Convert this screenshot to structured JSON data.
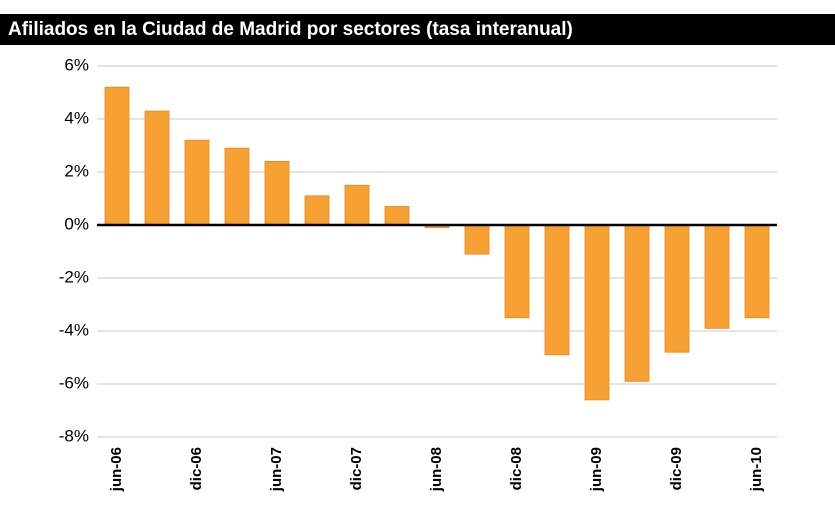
{
  "chart_data": {
    "type": "bar",
    "title": "Afiliados en la Ciudad de Madrid por sectores (tasa interanual)",
    "categories": [
      "jun-06",
      null,
      "dic-06",
      null,
      "jun-07",
      null,
      "dic-07",
      null,
      "jun-08",
      null,
      "dic-08",
      null,
      "jun-09",
      null,
      "dic-09",
      null,
      "jun-10"
    ],
    "values": [
      5.2,
      4.3,
      3.2,
      2.9,
      2.4,
      1.1,
      1.5,
      0.7,
      -0.1,
      -1.1,
      -3.5,
      -4.9,
      -6.6,
      -5.9,
      -4.8,
      -3.9,
      -3.5
    ],
    "color": "#f7a033",
    "ylim": [
      -8,
      6
    ],
    "yticks": [
      {
        "value": -8,
        "label": "-8%"
      },
      {
        "value": -6,
        "label": "-6%"
      },
      {
        "value": -4,
        "label": "-4%"
      },
      {
        "value": -2,
        "label": "-2%"
      },
      {
        "value": 0,
        "label": "0%"
      },
      {
        "value": 2,
        "label": "2%"
      },
      {
        "value": 4,
        "label": "4%"
      },
      {
        "value": 6,
        "label": "6%"
      }
    ],
    "grid": true
  }
}
